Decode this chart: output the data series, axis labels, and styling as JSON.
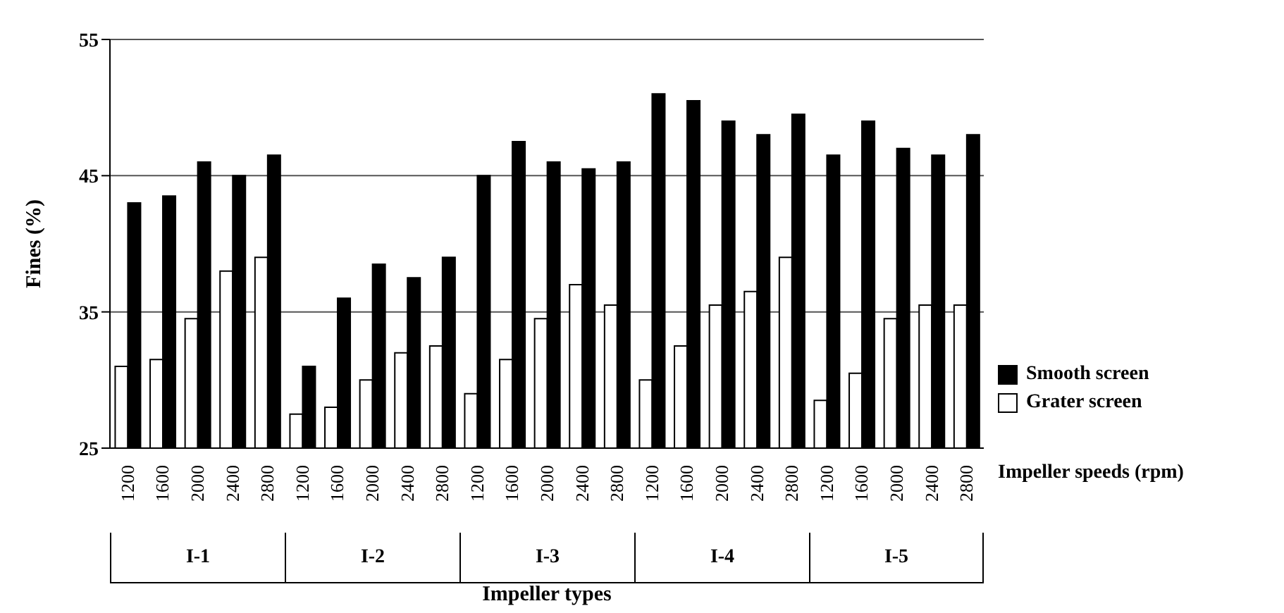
{
  "chart_data": {
    "type": "bar",
    "xlabel": "Impeller types",
    "ylabel": "Fines (%)",
    "categories": [
      "1200",
      "1600",
      "2000",
      "2400",
      "2800",
      "1200",
      "1600",
      "2000",
      "2400",
      "2800",
      "1200",
      "1600",
      "2000",
      "2400",
      "2800",
      "1200",
      "1600",
      "2000",
      "2400",
      "2800",
      "1200",
      "1600",
      "2000",
      "2400",
      "2800"
    ],
    "series": [
      {
        "name": "Grater screen",
        "color": "#ffffff",
        "values": [
          31,
          31.5,
          34.5,
          38,
          39,
          27.5,
          28,
          30,
          32,
          32.5,
          29,
          31.5,
          34.5,
          37,
          35.5,
          30,
          32.5,
          35.5,
          36.5,
          39,
          28.5,
          30.5,
          34.5,
          35.5,
          35.5
        ]
      },
      {
        "name": "Smooth screen",
        "color": "#000000",
        "values": [
          43,
          43.5,
          46,
          45,
          46.5,
          31,
          36,
          38.5,
          37.5,
          39,
          45,
          47.5,
          46,
          45.5,
          46,
          51,
          50.5,
          49,
          48,
          49.5,
          46.5,
          49,
          47,
          46.5,
          48
        ]
      }
    ],
    "ylim": [
      25,
      55
    ],
    "yticks": [
      25,
      35,
      45,
      55
    ],
    "grid": "y",
    "legend": "right",
    "annotations": [
      "I-1",
      "I-2",
      "I-3",
      "I-4",
      "I-5",
      "Impeller speeds (rpm)"
    ]
  }
}
